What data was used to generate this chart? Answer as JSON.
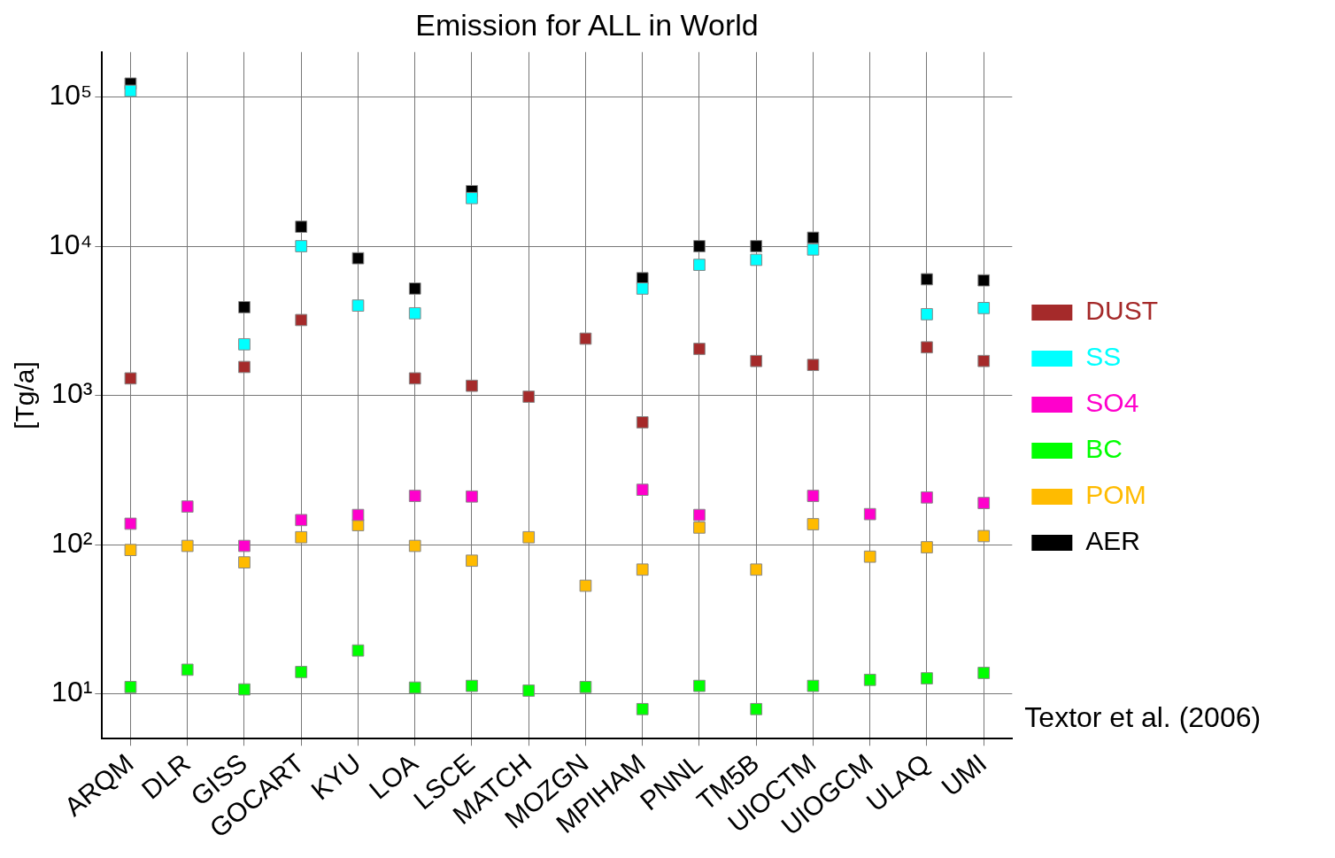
{
  "chart_data": {
    "type": "scatter",
    "title": "Emission for ALL in World",
    "ylabel": "[Tg/a]",
    "log": true,
    "grid": true,
    "legend": "right",
    "marker": "square",
    "categories": [
      "ARQM",
      "DLR",
      "GISS",
      "GOCART",
      "KYU",
      "LOA",
      "LSCE",
      "MATCH",
      "MOZGN",
      "MPIHAM",
      "PNNL",
      "TM5B",
      "UIOCTM",
      "UIOGCM",
      "ULAQ",
      "UMI"
    ],
    "ylim": [
      5,
      200000
    ],
    "yticks": [
      {
        "value": 10,
        "label": "10¹"
      },
      {
        "value": 100,
        "label": "10²"
      },
      {
        "value": 1000,
        "label": "10³"
      },
      {
        "value": 10000,
        "label": "10⁴"
      },
      {
        "value": 100000,
        "label": "10⁵"
      }
    ],
    "series": [
      {
        "name": "DUST",
        "color": "#a52a2a",
        "values": [
          1300,
          null,
          1550,
          3200,
          null,
          1300,
          1160,
          980,
          2400,
          660,
          2050,
          1700,
          1600,
          null,
          2100,
          1700
        ]
      },
      {
        "name": "SS",
        "color": "#00ffff",
        "values": [
          110000,
          null,
          2200,
          10000,
          4000,
          3550,
          21000,
          null,
          null,
          5200,
          7500,
          8100,
          9500,
          null,
          3500,
          3850
        ]
      },
      {
        "name": "SO4",
        "color": "#ff00cc",
        "values": [
          138,
          180,
          98,
          146,
          158,
          212,
          210,
          null,
          null,
          233,
          158,
          null,
          212,
          160,
          207,
          190
        ]
      },
      {
        "name": "BC",
        "color": "#00ff00",
        "values": [
          11.1,
          14.5,
          10.7,
          14,
          19.5,
          11,
          11.3,
          10.5,
          11.1,
          7.9,
          11.3,
          7.9,
          11.3,
          12.4,
          12.7,
          13.8
        ]
      },
      {
        "name": "POM",
        "color": "#ffbb00",
        "values": [
          92,
          98,
          76,
          112,
          135,
          98,
          78,
          112,
          53,
          68,
          130,
          68,
          137,
          83,
          96,
          114
        ]
      },
      {
        "name": "AER",
        "color": "#000000",
        "values": [
          123000,
          null,
          3900,
          13500,
          8300,
          5200,
          23400,
          null,
          null,
          6100,
          10000,
          10000,
          11400,
          null,
          6000,
          5900
        ]
      }
    ],
    "annotations": [
      "Textor et al. (2006)"
    ]
  }
}
